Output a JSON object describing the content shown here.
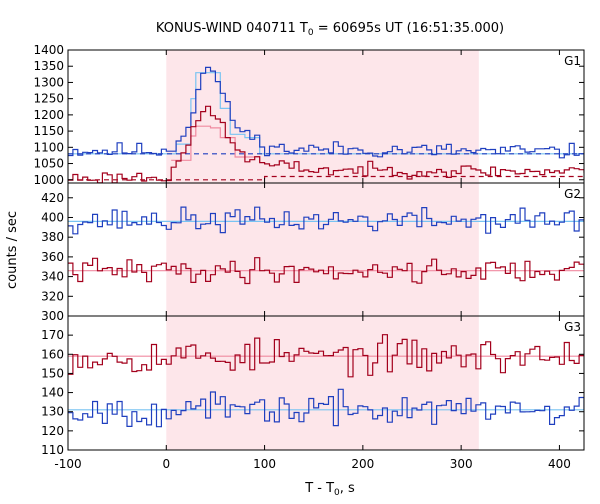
{
  "chart_data": {
    "type": "line",
    "title_main": "KONUS-WIND 040711 T",
    "title_sub": "0",
    "title_rest": " = 60695s UT (16:51:35.000)",
    "xlabel_main": "T - T",
    "xlabel_sub": "0",
    "xlabel_rest": ", s",
    "ylabel": "counts / sec",
    "xlim": [
      -100,
      425
    ],
    "x_ticks": [
      -100,
      0,
      100,
      200,
      300,
      400
    ],
    "highlight_interval": [
      0,
      318
    ],
    "colors": {
      "highlight": "#fde6ea",
      "blue": "#1f3fbf",
      "light_blue": "#79c4f2",
      "red": "#a3001c",
      "pink": "#f08aa0"
    },
    "panels": [
      {
        "label": "G1",
        "ylim": [
          990,
          1400
        ],
        "y_ticks": [
          1000,
          1050,
          1100,
          1150,
          1200,
          1250,
          1300,
          1350,
          1400
        ],
        "series": [
          {
            "color": "blue",
            "noise": 12,
            "seed": 11,
            "profile": [
              [
                -100,
                1090
              ],
              [
                0,
                1090
              ],
              [
                15,
                1140
              ],
              [
                22,
                1180
              ],
              [
                28,
                1260
              ],
              [
                33,
                1320
              ],
              [
                38,
                1340
              ],
              [
                48,
                1330
              ],
              [
                55,
                1260
              ],
              [
                62,
                1200
              ],
              [
                75,
                1150
              ],
              [
                90,
                1120
              ],
              [
                110,
                1095
              ],
              [
                425,
                1085
              ]
            ]
          },
          {
            "color": "red",
            "noise": 10,
            "seed": 23,
            "profile": [
              [
                -100,
                1005
              ],
              [
                0,
                1010
              ],
              [
                8,
                1060
              ],
              [
                18,
                1090
              ],
              [
                26,
                1150
              ],
              [
                32,
                1200
              ],
              [
                38,
                1220
              ],
              [
                46,
                1210
              ],
              [
                55,
                1160
              ],
              [
                65,
                1110
              ],
              [
                80,
                1070
              ],
              [
                100,
                1045
              ],
              [
                160,
                1030
              ],
              [
                425,
                1025
              ]
            ]
          }
        ],
        "fits": [
          {
            "color": "light_blue",
            "style": "solid",
            "steps": [
              [
                -100,
                1080
              ],
              [
                0,
                1080
              ],
              [
                10,
                1110
              ],
              [
                25,
                1250
              ],
              [
                30,
                1330
              ],
              [
                45,
                1330
              ],
              [
                55,
                1220
              ],
              [
                65,
                1140
              ],
              [
                80,
                1130
              ],
              [
                95,
                1080
              ],
              [
                425,
                1080
              ]
            ]
          },
          {
            "color": "blue",
            "style": "dash",
            "steps": [
              [
                -100,
                1080
              ],
              [
                425,
                1080
              ]
            ]
          },
          {
            "color": "pink",
            "style": "solid",
            "steps": [
              [
                5,
                1060
              ],
              [
                25,
                1135
              ],
              [
                30,
                1165
              ],
              [
                45,
                1160
              ],
              [
                55,
                1130
              ],
              [
                70,
                1070
              ],
              [
                95,
                1055
              ]
            ]
          },
          {
            "color": "red",
            "style": "dash",
            "steps": [
              [
                -100,
                1000
              ],
              [
                0,
                1000
              ],
              [
                100,
                1010
              ],
              [
                425,
                1010
              ]
            ]
          }
        ]
      },
      {
        "label": "G2",
        "ylim": [
          300,
          435
        ],
        "y_ticks": [
          300,
          320,
          340,
          360,
          380,
          400,
          420
        ],
        "series": [
          {
            "color": "blue",
            "noise": 6,
            "seed": 37,
            "profile": [
              [
                -100,
                397
              ],
              [
                425,
                397
              ]
            ]
          },
          {
            "color": "red",
            "noise": 6,
            "seed": 41,
            "profile": [
              [
                -100,
                346
              ],
              [
                425,
                346
              ]
            ]
          }
        ],
        "fits": [
          {
            "color": "light_blue",
            "style": "solid",
            "steps": [
              [
                -100,
                396
              ],
              [
                425,
                396
              ]
            ]
          },
          {
            "color": "pink",
            "style": "solid",
            "steps": [
              [
                -100,
                346
              ],
              [
                425,
                346
              ]
            ]
          }
        ]
      },
      {
        "label": "G3",
        "ylim": [
          110,
          180
        ],
        "y_ticks": [
          110,
          120,
          130,
          140,
          150,
          160,
          170
        ],
        "series": [
          {
            "color": "red",
            "noise": 4.5,
            "seed": 53,
            "profile": [
              [
                -100,
                159
              ],
              [
                425,
                159
              ]
            ]
          },
          {
            "color": "blue",
            "noise": 4,
            "seed": 67,
            "profile": [
              [
                -100,
                131
              ],
              [
                425,
                131
              ]
            ]
          }
        ],
        "fits": [
          {
            "color": "pink",
            "style": "solid",
            "steps": [
              [
                -100,
                159
              ],
              [
                425,
                159
              ]
            ]
          },
          {
            "color": "light_blue",
            "style": "solid",
            "steps": [
              [
                -100,
                131
              ],
              [
                425,
                131
              ]
            ]
          }
        ]
      }
    ]
  }
}
